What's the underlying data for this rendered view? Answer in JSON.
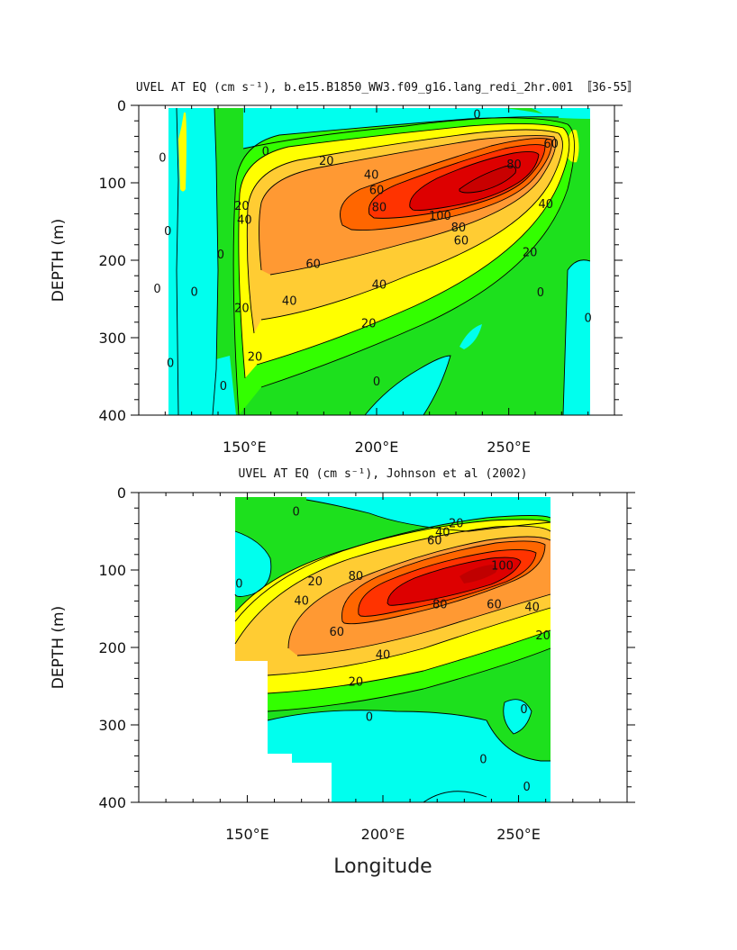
{
  "chart_data": [
    {
      "type": "heatmap",
      "title": "UVEL AT EQ (cm s⁻¹), b.e15.B1850_WW3.f09_g16.lang_redi_2hr.001 〚36-55〛",
      "xlabel": "",
      "ylabel": "DEPTH (m)",
      "xlim": [
        110,
        290
      ],
      "ylim": [
        400,
        0
      ],
      "x_ticks": [
        150,
        200,
        250
      ],
      "x_tick_labels": [
        "150°E",
        "200°E",
        "250°E"
      ],
      "y_ticks": [
        0,
        100,
        200,
        300,
        400
      ],
      "y_tick_labels": [
        "0",
        "100",
        "200",
        "300",
        "400"
      ],
      "data_extent": {
        "lon": [
          116,
          280
        ],
        "depth": [
          10,
          400
        ]
      },
      "core": {
        "lon": 240,
        "depth": 115,
        "max": 105
      },
      "contour_levels": [
        -10,
        0,
        10,
        20,
        30,
        40,
        50,
        60,
        70,
        80,
        90,
        100
      ],
      "contour_labels": [
        {
          "text": "0",
          "lon": 238,
          "depth": 12
        },
        {
          "text": "0",
          "lon": 158,
          "depth": 60
        },
        {
          "text": "20",
          "lon": 181,
          "depth": 72
        },
        {
          "text": "40",
          "lon": 198,
          "depth": 90
        },
        {
          "text": "60",
          "lon": 200,
          "depth": 110
        },
        {
          "text": "80",
          "lon": 201,
          "depth": 132
        },
        {
          "text": "80",
          "lon": 252,
          "depth": 77
        },
        {
          "text": "60",
          "lon": 266,
          "depth": 50
        },
        {
          "text": "100",
          "lon": 224,
          "depth": 143
        },
        {
          "text": "80",
          "lon": 231,
          "depth": 158
        },
        {
          "text": "60",
          "lon": 232,
          "depth": 175
        },
        {
          "text": "40",
          "lon": 264,
          "depth": 128
        },
        {
          "text": "20",
          "lon": 258,
          "depth": 190
        },
        {
          "text": "60",
          "lon": 176,
          "depth": 205
        },
        {
          "text": "40",
          "lon": 201,
          "depth": 232
        },
        {
          "text": "40",
          "lon": 167,
          "depth": 253
        },
        {
          "text": "20",
          "lon": 197,
          "depth": 282
        },
        {
          "text": "20",
          "lon": 149,
          "depth": 130
        },
        {
          "text": "40",
          "lon": 150,
          "depth": 148
        },
        {
          "text": "20",
          "lon": 149,
          "depth": 262
        },
        {
          "text": "20",
          "lon": 154,
          "depth": 325
        },
        {
          "text": "0",
          "lon": 119,
          "depth": 68
        },
        {
          "text": "0",
          "lon": 121,
          "depth": 163
        },
        {
          "text": "0",
          "lon": 117,
          "depth": 237
        },
        {
          "text": "0",
          "lon": 122,
          "depth": 333
        },
        {
          "text": "0",
          "lon": 131,
          "depth": 241
        },
        {
          "text": "0",
          "lon": 141,
          "depth": 193
        },
        {
          "text": "0",
          "lon": 142,
          "depth": 363
        },
        {
          "text": "0",
          "lon": 200,
          "depth": 357
        },
        {
          "text": "0",
          "lon": 262,
          "depth": 242
        },
        {
          "text": "0",
          "lon": 280,
          "depth": 275
        }
      ]
    },
    {
      "type": "heatmap",
      "title": "UVEL AT EQ (cm s⁻¹), Johnson et al (2002)",
      "xlabel": "Longitude",
      "ylabel": "DEPTH (m)",
      "xlim": [
        110,
        290
      ],
      "ylim": [
        400,
        0
      ],
      "x_ticks": [
        150,
        200,
        250
      ],
      "x_tick_labels": [
        "150°E",
        "200°E",
        "250°E"
      ],
      "y_ticks": [
        0,
        100,
        200,
        300,
        400
      ],
      "y_tick_labels": [
        "0",
        "100",
        "200",
        "300",
        "400"
      ],
      "data_extent": {
        "lon": [
          143,
          265
        ],
        "depth": [
          10,
          400
        ]
      },
      "core": {
        "lon": 235,
        "depth": 100,
        "max": 108
      },
      "contour_levels": [
        -10,
        0,
        10,
        20,
        30,
        40,
        50,
        60,
        70,
        80,
        90,
        100
      ],
      "contour_labels": [
        {
          "text": "0",
          "lon": 168,
          "depth": 25
        },
        {
          "text": "20",
          "lon": 227,
          "depth": 40
        },
        {
          "text": "40",
          "lon": 222,
          "depth": 52
        },
        {
          "text": "60",
          "lon": 219,
          "depth": 62
        },
        {
          "text": "100",
          "lon": 244,
          "depth": 95
        },
        {
          "text": "80",
          "lon": 190,
          "depth": 108
        },
        {
          "text": "80",
          "lon": 221,
          "depth": 145
        },
        {
          "text": "60",
          "lon": 241,
          "depth": 145
        },
        {
          "text": "40",
          "lon": 255,
          "depth": 148
        },
        {
          "text": "20",
          "lon": 259,
          "depth": 185
        },
        {
          "text": "60",
          "lon": 183,
          "depth": 180
        },
        {
          "text": "40",
          "lon": 200,
          "depth": 210
        },
        {
          "text": "20",
          "lon": 190,
          "depth": 245
        },
        {
          "text": "20",
          "lon": 175,
          "depth": 115
        },
        {
          "text": "40",
          "lon": 170,
          "depth": 140
        },
        {
          "text": "0",
          "lon": 147,
          "depth": 118
        },
        {
          "text": "0",
          "lon": 195,
          "depth": 290
        },
        {
          "text": "0",
          "lon": 252,
          "depth": 280
        },
        {
          "text": "0",
          "lon": 237,
          "depth": 345
        },
        {
          "text": "0",
          "lon": 253,
          "depth": 380
        }
      ]
    }
  ],
  "palette": [
    "#00ffee",
    "#1de01d",
    "#33ff00",
    "#ffff00",
    "#ffcc33",
    "#ff9933",
    "#ff6600",
    "#ff3300",
    "#dd0000"
  ]
}
